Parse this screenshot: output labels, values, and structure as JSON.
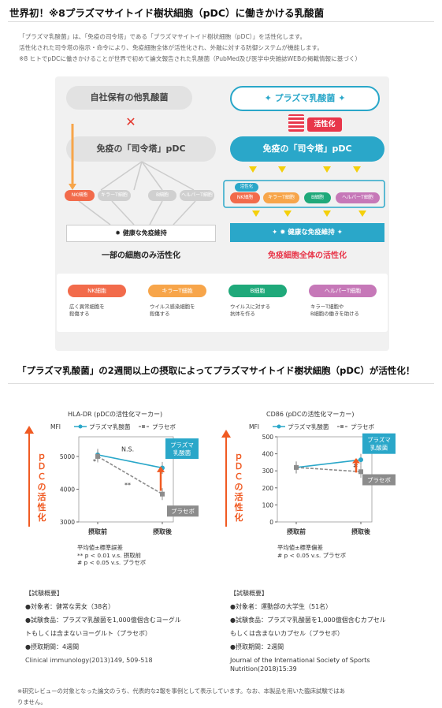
{
  "heading1": "世界初！※8プラズマサイトイド樹状細胞（pDC）に働きかける乳酸菌",
  "intro": [
    "「プラズマ乳酸菌」は、「免疫の司令塔」である「プラズマサイトイド樹状細胞（pDC）」を活性化します。",
    "活性化された司令塔の指示・命令により、免疫細胞全体が活性化され、外敵に対する防御システムが機能します。",
    "※8 ヒトでpDCに働きかけることが世界で初めて論文報告された乳酸菌（PubMed及び医学中央雑誌WEBの掲載情報に基づく）"
  ],
  "diagram": {
    "left_top": "自社保有の他乳酸菌",
    "right_top": "プラズマ乳酸菌",
    "activation": "活性化",
    "left_pdc": "免疫の「司令塔」pDC",
    "right_pdc": "免疫の「司令塔」pDC",
    "cells": [
      "NK細胞",
      "キラーT細胞",
      "B細胞",
      "ヘルパーT細胞"
    ],
    "activated_tag": "活性化",
    "left_result": "健康な免疫維持",
    "right_result": "健康な免疫維持",
    "left_caption": "一部の細胞のみ活性化",
    "right_caption": "免疫細胞全体の活性化",
    "legend": [
      {
        "name": "NK細胞",
        "desc": [
          "広く異常細胞を",
          "殺傷する"
        ],
        "color": "#f26b4b"
      },
      {
        "name": "キラーT細胞",
        "desc": [
          "ウイルス感染細胞を",
          "殺傷する"
        ],
        "color": "#f7a54a"
      },
      {
        "name": "B細胞",
        "desc": [
          "ウイルスに対する",
          "抗体を作る"
        ],
        "color": "#1fa97a"
      },
      {
        "name": "ヘルパーT細胞",
        "desc": [
          "キラーT細胞や",
          "B細胞の働きを助ける"
        ],
        "color": "#c678b8"
      }
    ]
  },
  "heading2": "「プラズマ乳酸菌」の2週間以上の摂取によってプラズマサイトイド樹状細胞（pDC）が活性化！",
  "vertical_label": "ｐＤＣの活性化",
  "chart_data": [
    {
      "type": "line",
      "title": "HLA-DR (pDCの活性化マーカー)",
      "ylabel": "MFI",
      "categories": [
        "摂取前",
        "摂取後"
      ],
      "ylim": [
        3000,
        5600
      ],
      "yticks": [
        3000,
        4000,
        5000
      ],
      "series": [
        {
          "name": "プラズマ乳酸菌",
          "values": [
            5050,
            4650
          ],
          "color": "#2aa7c9"
        },
        {
          "name": "プラセボ",
          "values": [
            5000,
            3850
          ],
          "color": "#8c8c8c"
        }
      ],
      "annotations": [
        "N.S.",
        "**",
        "*",
        "プラズマ乳酸菌",
        "プラセボ"
      ],
      "footnote": [
        "平均値±標準誤差",
        "** p < 0.01 v.s. 摂取前",
        "# p < 0.05 v.s. プラセボ"
      ]
    },
    {
      "type": "line",
      "title": "CD86 (pDCの活性化マーカー)",
      "ylabel": "MFI",
      "categories": [
        "摂取前",
        "摂取後"
      ],
      "ylim": [
        0,
        500
      ],
      "yticks": [
        0,
        100,
        200,
        300,
        400,
        500
      ],
      "series": [
        {
          "name": "プラズマ乳酸菌",
          "values": [
            320,
            365
          ],
          "color": "#2aa7c9"
        },
        {
          "name": "プラセボ",
          "values": [
            320,
            295
          ],
          "color": "#8c8c8c"
        }
      ],
      "annotations": [
        "#",
        "プラズマ乳酸菌",
        "プラセボ"
      ],
      "footnote": [
        "平均値±標準偏差",
        "# p < 0.05 v.s. プラセボ"
      ]
    }
  ],
  "labels": {
    "c1_box_top": "プラズマ\n乳酸菌",
    "c1_box_bot": "プラセボ",
    "c1_ns": "N.S.",
    "c1_star2": "**",
    "c1_star1": "*",
    "c2_box_top": "プラズマ\n乳酸菌",
    "c2_box_bot": "プラセボ",
    "c2_hash": "#"
  },
  "study1": {
    "title": "【試験概要】",
    "lines": [
      "●対象者：健常な男女（38名）",
      "●試験食品：プラズマ乳酸菌を1,000億個含むヨーグル",
      "トもしくは含まないヨーグルト（プラセボ）",
      "●摂取期間：4週間",
      "Clinical immunology(2013)149, 509-518"
    ]
  },
  "study2": {
    "title": "【試験概要】",
    "lines": [
      "●対象者：運動部の大学生（51名）",
      "●試験食品：プラズマ乳酸菌を1,000億個含むカプセル",
      "もしくは含まないカプセル（プラセボ）",
      "●摂取期間：2週間",
      "Journal of the International Society of Sports",
      "Nutrition(2018)15:39"
    ]
  },
  "footer": [
    "※研究レビューの対象となった論文のうち、代表的な2報を事例として表示しています。なお、本製品を用いた臨床試験ではあ",
    "りません。"
  ]
}
